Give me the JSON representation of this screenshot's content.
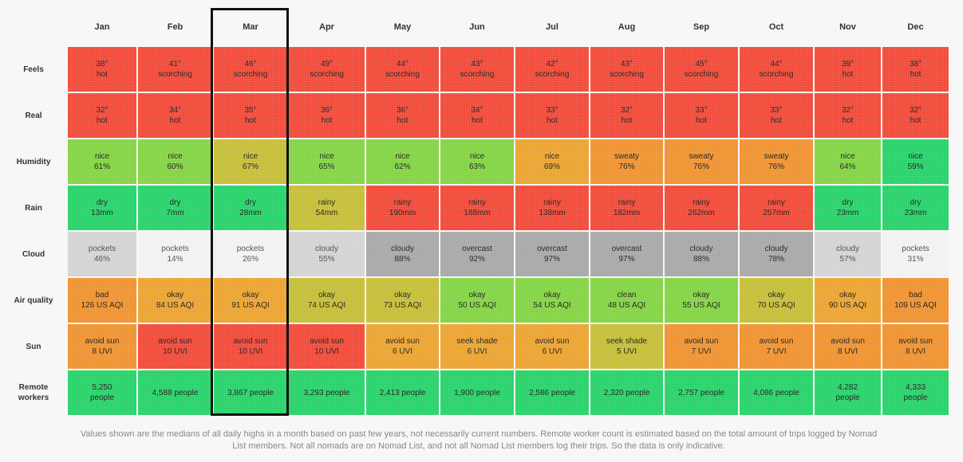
{
  "months": [
    "Jan",
    "Feb",
    "Mar",
    "Apr",
    "May",
    "Jun",
    "Jul",
    "Aug",
    "Sep",
    "Oct",
    "Nov",
    "Dec"
  ],
  "highlighted_month": "Mar",
  "colors": {
    "red": "#f24c3b",
    "green": "#2ad36b",
    "lightgreen": "#85d446",
    "olive": "#c6bf3a",
    "orange": "#eca533",
    "deeporange": "#f09433",
    "gray": "#a9a9a9",
    "lightgray": "#d4d4d4",
    "paler": "#ebebeb",
    "white": "#f2f2f2"
  },
  "rows": [
    {
      "label": "Feels",
      "cells": [
        {
          "l1": "38°",
          "l2": "hot",
          "color": "red"
        },
        {
          "l1": "41°",
          "l2": "scorching",
          "color": "red"
        },
        {
          "l1": "46°",
          "l2": "scorching",
          "color": "red"
        },
        {
          "l1": "49°",
          "l2": "scorching",
          "color": "red"
        },
        {
          "l1": "44°",
          "l2": "scorching",
          "color": "red"
        },
        {
          "l1": "43°",
          "l2": "scorching",
          "color": "red"
        },
        {
          "l1": "42°",
          "l2": "scorching",
          "color": "red"
        },
        {
          "l1": "43°",
          "l2": "scorching",
          "color": "red"
        },
        {
          "l1": "45°",
          "l2": "scorching",
          "color": "red"
        },
        {
          "l1": "44°",
          "l2": "scorching",
          "color": "red"
        },
        {
          "l1": "39°",
          "l2": "hot",
          "color": "red"
        },
        {
          "l1": "38°",
          "l2": "hot",
          "color": "red"
        }
      ]
    },
    {
      "label": "Real",
      "cells": [
        {
          "l1": "32°",
          "l2": "hot",
          "color": "red"
        },
        {
          "l1": "34°",
          "l2": "hot",
          "color": "red"
        },
        {
          "l1": "35°",
          "l2": "hot",
          "color": "red"
        },
        {
          "l1": "36°",
          "l2": "hot",
          "color": "red"
        },
        {
          "l1": "36°",
          "l2": "hot",
          "color": "red"
        },
        {
          "l1": "34°",
          "l2": "hot",
          "color": "red"
        },
        {
          "l1": "33°",
          "l2": "hot",
          "color": "red"
        },
        {
          "l1": "32°",
          "l2": "hot",
          "color": "red"
        },
        {
          "l1": "33°",
          "l2": "hot",
          "color": "red"
        },
        {
          "l1": "33°",
          "l2": "hot",
          "color": "red"
        },
        {
          "l1": "32°",
          "l2": "hot",
          "color": "red"
        },
        {
          "l1": "32°",
          "l2": "hot",
          "color": "red"
        }
      ]
    },
    {
      "label": "Humidity",
      "cells": [
        {
          "l1": "nice",
          "l2": "61%",
          "color": "lightgreen"
        },
        {
          "l1": "nice",
          "l2": "60%",
          "color": "lightgreen"
        },
        {
          "l1": "nice",
          "l2": "67%",
          "color": "olive"
        },
        {
          "l1": "nice",
          "l2": "65%",
          "color": "lightgreen"
        },
        {
          "l1": "nice",
          "l2": "62%",
          "color": "lightgreen"
        },
        {
          "l1": "nice",
          "l2": "63%",
          "color": "lightgreen"
        },
        {
          "l1": "nice",
          "l2": "69%",
          "color": "orange"
        },
        {
          "l1": "sweaty",
          "l2": "76%",
          "color": "deeporange"
        },
        {
          "l1": "sweaty",
          "l2": "76%",
          "color": "deeporange"
        },
        {
          "l1": "sweaty",
          "l2": "76%",
          "color": "deeporange"
        },
        {
          "l1": "nice",
          "l2": "64%",
          "color": "lightgreen"
        },
        {
          "l1": "nice",
          "l2": "59%",
          "color": "green"
        }
      ]
    },
    {
      "label": "Rain",
      "cells": [
        {
          "l1": "dry",
          "l2": "13mm",
          "color": "green"
        },
        {
          "l1": "dry",
          "l2": "7mm",
          "color": "green"
        },
        {
          "l1": "dry",
          "l2": "28mm",
          "color": "green"
        },
        {
          "l1": "rainy",
          "l2": "54mm",
          "color": "olive"
        },
        {
          "l1": "rainy",
          "l2": "190mm",
          "color": "red"
        },
        {
          "l1": "rainy",
          "l2": "188mm",
          "color": "red"
        },
        {
          "l1": "rainy",
          "l2": "138mm",
          "color": "red"
        },
        {
          "l1": "rainy",
          "l2": "182mm",
          "color": "red"
        },
        {
          "l1": "rainy",
          "l2": "262mm",
          "color": "red"
        },
        {
          "l1": "rainy",
          "l2": "257mm",
          "color": "red"
        },
        {
          "l1": "dry",
          "l2": "23mm",
          "color": "green"
        },
        {
          "l1": "dry",
          "l2": "23mm",
          "color": "green"
        }
      ]
    },
    {
      "label": "Cloud",
      "cells": [
        {
          "l1": "pockets",
          "l2": "46%",
          "color": "lightgray"
        },
        {
          "l1": "pockets",
          "l2": "14%",
          "color": "white"
        },
        {
          "l1": "pockets",
          "l2": "26%",
          "color": "white"
        },
        {
          "l1": "cloudy",
          "l2": "55%",
          "color": "lightgray"
        },
        {
          "l1": "cloudy",
          "l2": "88%",
          "color": "gray"
        },
        {
          "l1": "overcast",
          "l2": "92%",
          "color": "gray"
        },
        {
          "l1": "overcast",
          "l2": "97%",
          "color": "gray"
        },
        {
          "l1": "overcast",
          "l2": "97%",
          "color": "gray"
        },
        {
          "l1": "cloudy",
          "l2": "88%",
          "color": "gray"
        },
        {
          "l1": "cloudy",
          "l2": "78%",
          "color": "gray"
        },
        {
          "l1": "cloudy",
          "l2": "57%",
          "color": "lightgray"
        },
        {
          "l1": "pockets",
          "l2": "31%",
          "color": "white"
        }
      ]
    },
    {
      "label": "Air quality",
      "cells": [
        {
          "l1": "bad",
          "l2": "126 US AQI",
          "color": "deeporange"
        },
        {
          "l1": "okay",
          "l2": "84 US AQI",
          "color": "orange"
        },
        {
          "l1": "okay",
          "l2": "91 US AQI",
          "color": "orange"
        },
        {
          "l1": "okay",
          "l2": "74 US AQI",
          "color": "olive"
        },
        {
          "l1": "okay",
          "l2": "73 US AQI",
          "color": "olive"
        },
        {
          "l1": "okay",
          "l2": "50 US AQI",
          "color": "lightgreen"
        },
        {
          "l1": "okay",
          "l2": "54 US AQI",
          "color": "lightgreen"
        },
        {
          "l1": "clean",
          "l2": "48 US AQI",
          "color": "lightgreen"
        },
        {
          "l1": "okay",
          "l2": "55 US AQI",
          "color": "lightgreen"
        },
        {
          "l1": "okay",
          "l2": "70 US AQI",
          "color": "olive"
        },
        {
          "l1": "okay",
          "l2": "90 US AQI",
          "color": "orange"
        },
        {
          "l1": "bad",
          "l2": "109 US AQI",
          "color": "deeporange"
        }
      ]
    },
    {
      "label": "Sun",
      "cells": [
        {
          "l1": "avoid sun",
          "l2": "8 UVI",
          "color": "deeporange"
        },
        {
          "l1": "avoid sun",
          "l2": "10 UVI",
          "color": "red"
        },
        {
          "l1": "avoid sun",
          "l2": "10 UVI",
          "color": "red"
        },
        {
          "l1": "avoid sun",
          "l2": "10 UVI",
          "color": "red"
        },
        {
          "l1": "avoid sun",
          "l2": "6 UVI",
          "color": "orange"
        },
        {
          "l1": "seek shade",
          "l2": "6 UVI",
          "color": "orange"
        },
        {
          "l1": "avoid sun",
          "l2": "6 UVI",
          "color": "orange"
        },
        {
          "l1": "seek shade",
          "l2": "5 UVI",
          "color": "olive"
        },
        {
          "l1": "avoid sun",
          "l2": "7 UVI",
          "color": "deeporange"
        },
        {
          "l1": "avoid sun",
          "l2": "7 UVI",
          "color": "deeporange"
        },
        {
          "l1": "avoid sun",
          "l2": "8 UVI",
          "color": "deeporange"
        },
        {
          "l1": "avoid sun",
          "l2": "8 UVI",
          "color": "deeporange"
        }
      ]
    },
    {
      "label": "Remote workers",
      "cells": [
        {
          "l1": "5,250",
          "l2": "people",
          "color": "green"
        },
        {
          "l1": "4,588 people",
          "l2": "",
          "color": "green"
        },
        {
          "l1": "3,867 people",
          "l2": "",
          "color": "green"
        },
        {
          "l1": "3,293 people",
          "l2": "",
          "color": "green"
        },
        {
          "l1": "2,413 people",
          "l2": "",
          "color": "green"
        },
        {
          "l1": "1,900 people",
          "l2": "",
          "color": "green"
        },
        {
          "l1": "2,586 people",
          "l2": "",
          "color": "green"
        },
        {
          "l1": "2,320 people",
          "l2": "",
          "color": "green"
        },
        {
          "l1": "2,757 people",
          "l2": "",
          "color": "green"
        },
        {
          "l1": "4,086 people",
          "l2": "",
          "color": "green"
        },
        {
          "l1": "4,282",
          "l2": "people",
          "color": "green"
        },
        {
          "l1": "4,333",
          "l2": "people",
          "color": "green"
        }
      ]
    }
  ],
  "footnote": "Values shown are the medians of all daily highs in a month based on past few years, not necessarily current numbers. Remote worker count is estimated based on the total amount of trips logged by Nomad List members. Not all nomads are on Nomad List, and not all Nomad List members log their trips. So the data is only indicative."
}
